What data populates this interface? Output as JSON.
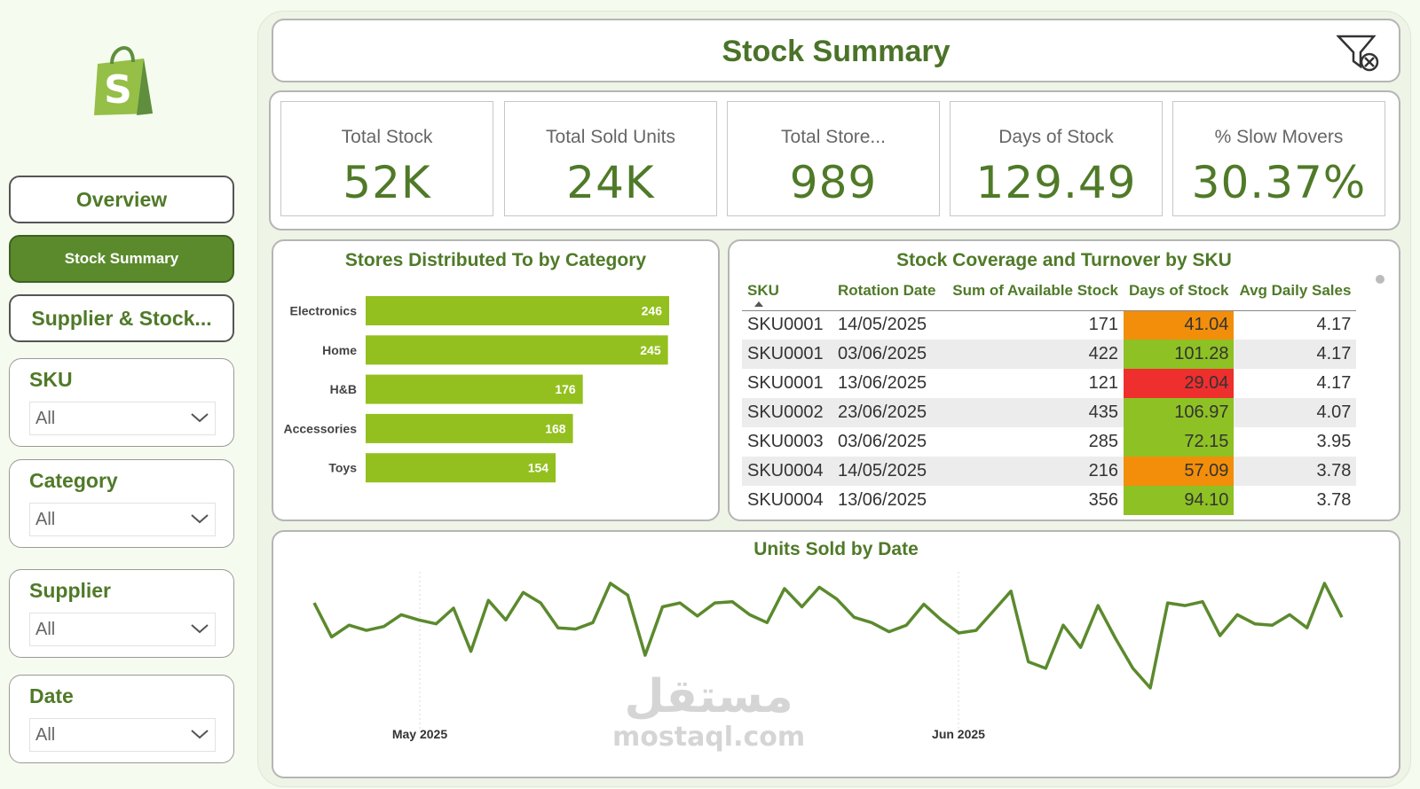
{
  "sidebar": {
    "nav": [
      {
        "label": "Overview",
        "active": false
      },
      {
        "label": "Stock Summary",
        "active": true
      },
      {
        "label": "Supplier & Stock..."
      }
    ],
    "slicers": [
      {
        "title": "SKU",
        "value": "All"
      },
      {
        "title": "Category",
        "value": "All"
      },
      {
        "title": "Supplier",
        "value": "All"
      },
      {
        "title": "Date",
        "value": "All"
      }
    ]
  },
  "header": {
    "title": "Stock Summary",
    "filter_icon": "clear-filter-icon"
  },
  "kpis": [
    {
      "label": "Total Stock",
      "value": "52K"
    },
    {
      "label": "Total Sold Units",
      "value": "24K"
    },
    {
      "label": "Total Store...",
      "value": "989"
    },
    {
      "label": "Days of Stock",
      "value": "129.49"
    },
    {
      "label": "% Slow Movers",
      "value": "30.37%"
    }
  ],
  "colors": {
    "accent": "#4f7a28",
    "bar": "#93c01f",
    "line": "#5b8a2d",
    "orange": "#f28e0a",
    "red": "#ef2e2e",
    "green": "#8ec124"
  },
  "stores_chart": {
    "chart_data": {
      "type": "bar",
      "title": "Stores Distributed To by Category",
      "categories": [
        "Electronics",
        "Home",
        "H&B",
        "Accessories",
        "Toys"
      ],
      "values": [
        246,
        245,
        176,
        168,
        154
      ]
    }
  },
  "sku_table": {
    "title": "Stock Coverage and Turnover by SKU",
    "columns": [
      "SKU",
      "Rotation Date",
      "Sum of Available Stock",
      "Days of Stock",
      "Avg Daily Sales"
    ],
    "rows": [
      {
        "sku": "SKU0001",
        "date": "14/05/2025",
        "stock": "171",
        "days": "41.04",
        "days_color": "orange",
        "avg": "4.17"
      },
      {
        "sku": "SKU0001",
        "date": "03/06/2025",
        "stock": "422",
        "days": "101.28",
        "days_color": "green",
        "avg": "4.17"
      },
      {
        "sku": "SKU0001",
        "date": "13/06/2025",
        "stock": "121",
        "days": "29.04",
        "days_color": "red",
        "avg": "4.17"
      },
      {
        "sku": "SKU0002",
        "date": "23/06/2025",
        "stock": "435",
        "days": "106.97",
        "days_color": "green",
        "avg": "4.07"
      },
      {
        "sku": "SKU0003",
        "date": "03/06/2025",
        "stock": "285",
        "days": "72.15",
        "days_color": "green",
        "avg": "3.95"
      },
      {
        "sku": "SKU0004",
        "date": "14/05/2025",
        "stock": "216",
        "days": "57.09",
        "days_color": "orange",
        "avg": "3.78"
      },
      {
        "sku": "SKU0004",
        "date": "13/06/2025",
        "stock": "356",
        "days": "94.10",
        "days_color": "green",
        "avg": "3.78"
      }
    ]
  },
  "units_chart": {
    "chart_data": {
      "type": "line",
      "title": "Units Sold by Date",
      "x_tick_labels": [
        "May 2025",
        "Jun 2025"
      ],
      "series": [
        {
          "values": [
            6.5,
            3.9,
            4.8,
            4.4,
            4.7,
            5.6,
            5.2,
            4.9,
            6.1,
            2.8,
            6.7,
            5.2,
            7.3,
            6.5,
            4.6,
            4.5,
            5.0,
            8.0,
            7.1,
            2.5,
            6.2,
            6.5,
            5.5,
            6.5,
            6.6,
            5.6,
            5.0,
            7.6,
            6.2,
            7.7,
            6.8,
            5.4,
            5.0,
            4.3,
            4.8,
            6.4,
            5.2,
            4.2,
            4.4,
            5.9,
            7.4,
            2.0,
            1.5,
            4.8,
            3.1,
            6.3,
            3.8,
            1.5,
            0.0,
            6.5,
            6.3,
            6.6,
            4.0,
            5.6,
            4.9,
            4.8,
            5.6,
            4.6,
            8.0,
            5.4
          ]
        }
      ]
    }
  },
  "watermark": {
    "arabic": "مستقل",
    "latin": "mostaql.com"
  }
}
